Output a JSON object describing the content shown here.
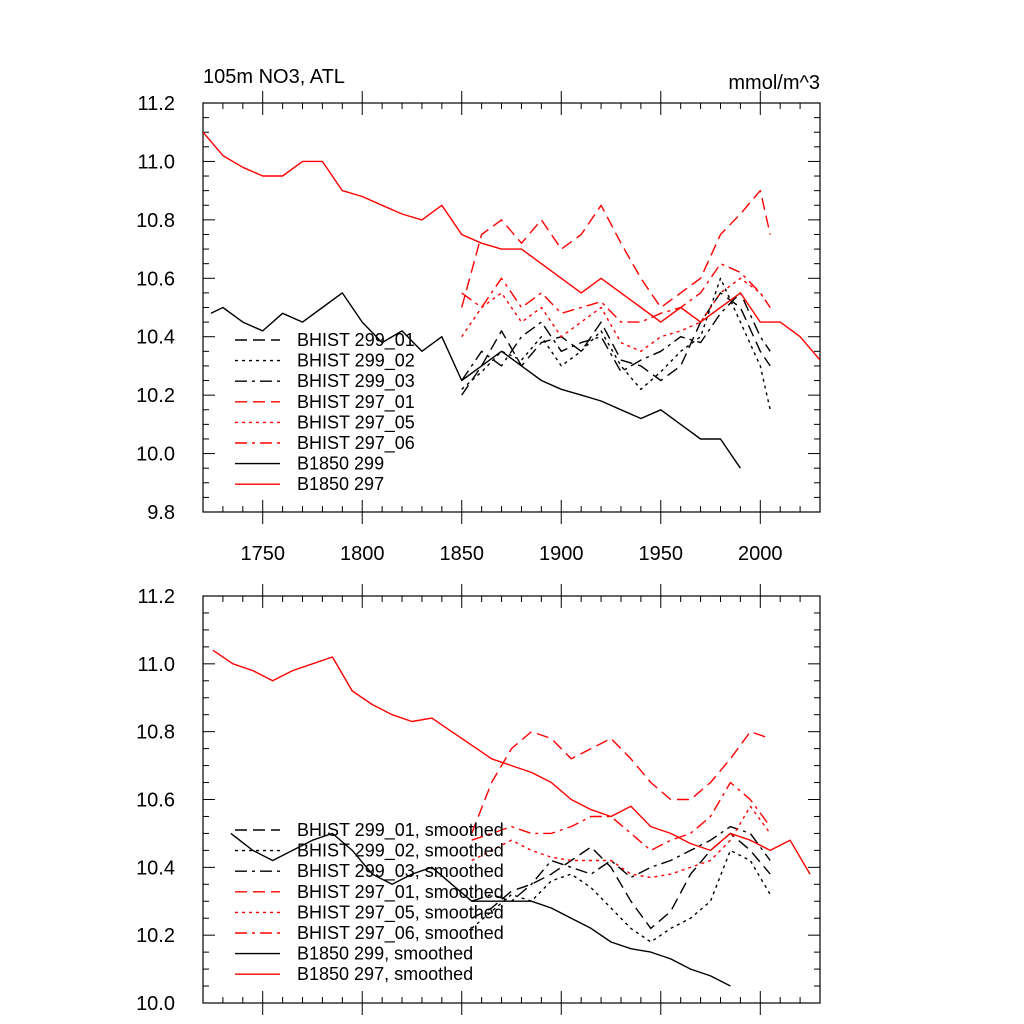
{
  "chart_data": [
    {
      "type": "line",
      "title": "105m NO3, ATL",
      "units": "mmol/m^3",
      "xlim": [
        1720,
        2030
      ],
      "ylim": [
        9.8,
        11.2
      ],
      "xticks": [
        1750,
        1800,
        1850,
        1900,
        1950,
        2000
      ],
      "xtick_labels": [
        "1750",
        "1800",
        "1850",
        "1900",
        "1950",
        "2000"
      ],
      "yticks": [
        9.8,
        10.0,
        10.2,
        10.4,
        10.6,
        10.8,
        11.0,
        11.2
      ],
      "ytick_labels": [
        "9.8",
        "10.0",
        "10.2",
        "10.4",
        "10.6",
        "10.8",
        "11.0",
        "11.2"
      ],
      "grid": false,
      "legend_position": "lower-left",
      "series": [
        {
          "name": "BHIST 299_01",
          "color": "#000000",
          "dash": "dash",
          "x": [
            1850,
            1860,
            1870,
            1880,
            1890,
            1900,
            1910,
            1920,
            1930,
            1940,
            1950,
            1960,
            1970,
            1980,
            1990,
            2000,
            2005
          ],
          "y": [
            10.2,
            10.3,
            10.42,
            10.3,
            10.38,
            10.4,
            10.35,
            10.45,
            10.32,
            10.3,
            10.25,
            10.3,
            10.45,
            10.55,
            10.5,
            10.35,
            10.3
          ]
        },
        {
          "name": "BHIST 299_02",
          "color": "#000000",
          "dash": "dot",
          "x": [
            1850,
            1860,
            1870,
            1880,
            1890,
            1900,
            1910,
            1920,
            1930,
            1940,
            1950,
            1960,
            1970,
            1980,
            1990,
            2000,
            2005
          ],
          "y": [
            10.22,
            10.28,
            10.35,
            10.32,
            10.4,
            10.3,
            10.35,
            10.42,
            10.3,
            10.22,
            10.28,
            10.35,
            10.4,
            10.6,
            10.45,
            10.3,
            10.15
          ]
        },
        {
          "name": "BHIST 299_03",
          "color": "#000000",
          "dash": "dashdot",
          "x": [
            1850,
            1860,
            1870,
            1880,
            1890,
            1900,
            1910,
            1920,
            1930,
            1940,
            1950,
            1960,
            1970,
            1980,
            1990,
            2000,
            2005
          ],
          "y": [
            10.25,
            10.35,
            10.3,
            10.4,
            10.45,
            10.35,
            10.38,
            10.4,
            10.28,
            10.32,
            10.35,
            10.4,
            10.38,
            10.48,
            10.55,
            10.4,
            10.35
          ]
        },
        {
          "name": "BHIST 297_01",
          "color": "#ff0000",
          "dash": "dash",
          "x": [
            1850,
            1860,
            1870,
            1880,
            1890,
            1900,
            1910,
            1920,
            1930,
            1940,
            1950,
            1960,
            1970,
            1980,
            1990,
            2000,
            2005
          ],
          "y": [
            10.5,
            10.75,
            10.8,
            10.72,
            10.8,
            10.7,
            10.75,
            10.85,
            10.72,
            10.6,
            10.5,
            10.55,
            10.6,
            10.75,
            10.82,
            10.9,
            10.75
          ]
        },
        {
          "name": "BHIST 297_05",
          "color": "#ff0000",
          "dash": "dot",
          "x": [
            1850,
            1860,
            1870,
            1880,
            1890,
            1900,
            1910,
            1920,
            1930,
            1940,
            1950,
            1960,
            1970,
            1980,
            1990,
            2000,
            2005
          ],
          "y": [
            10.4,
            10.5,
            10.55,
            10.45,
            10.5,
            10.4,
            10.45,
            10.5,
            10.38,
            10.35,
            10.4,
            10.42,
            10.45,
            10.55,
            10.6,
            10.55,
            10.5
          ]
        },
        {
          "name": "BHIST 297_06",
          "color": "#ff0000",
          "dash": "dashdot",
          "x": [
            1850,
            1860,
            1870,
            1880,
            1890,
            1900,
            1910,
            1920,
            1930,
            1940,
            1950,
            1960,
            1970,
            1980,
            1990,
            2000,
            2005
          ],
          "y": [
            10.55,
            10.5,
            10.6,
            10.5,
            10.55,
            10.48,
            10.5,
            10.52,
            10.45,
            10.45,
            10.48,
            10.5,
            10.55,
            10.65,
            10.62,
            10.55,
            10.5
          ]
        },
        {
          "name": "B1850 299",
          "color": "#000000",
          "dash": "solid",
          "x": [
            1724,
            1730,
            1740,
            1750,
            1760,
            1770,
            1780,
            1790,
            1800,
            1810,
            1820,
            1830,
            1840,
            1850,
            1860,
            1870,
            1880,
            1890,
            1900,
            1910,
            1920,
            1930,
            1940,
            1950,
            1960,
            1970,
            1980,
            1990
          ],
          "y": [
            10.48,
            10.5,
            10.45,
            10.42,
            10.48,
            10.45,
            10.5,
            10.55,
            10.45,
            10.38,
            10.42,
            10.35,
            10.4,
            10.25,
            10.3,
            10.35,
            10.3,
            10.25,
            10.22,
            10.2,
            10.18,
            10.15,
            10.12,
            10.15,
            10.1,
            10.05,
            10.05,
            9.95
          ]
        },
        {
          "name": "B1850 297",
          "color": "#ff0000",
          "dash": "solid",
          "x": [
            1720,
            1730,
            1740,
            1750,
            1760,
            1770,
            1780,
            1790,
            1800,
            1810,
            1820,
            1830,
            1840,
            1850,
            1860,
            1870,
            1880,
            1890,
            1900,
            1910,
            1920,
            1930,
            1940,
            1950,
            1960,
            1970,
            1980,
            1990,
            2000,
            2010,
            2020,
            2030
          ],
          "y": [
            11.1,
            11.02,
            10.98,
            10.95,
            10.95,
            11.0,
            11.0,
            10.9,
            10.88,
            10.85,
            10.82,
            10.8,
            10.85,
            10.75,
            10.72,
            10.7,
            10.7,
            10.65,
            10.6,
            10.55,
            10.6,
            10.55,
            10.5,
            10.45,
            10.5,
            10.45,
            10.5,
            10.55,
            10.45,
            10.45,
            10.4,
            10.32
          ]
        }
      ]
    },
    {
      "type": "line",
      "xlim": [
        1720,
        2030
      ],
      "ylim": [
        10.0,
        11.2
      ],
      "xticks": [
        1750,
        1800,
        1850,
        1900,
        1950,
        2000
      ],
      "yticks": [
        10.0,
        10.2,
        10.4,
        10.6,
        10.8,
        11.0,
        11.2
      ],
      "ytick_labels": [
        "10.0",
        "10.2",
        "10.4",
        "10.6",
        "10.8",
        "11.0",
        "11.2"
      ],
      "grid": false,
      "legend_position": "lower-left",
      "series": [
        {
          "name": "BHIST 299_01, smoothed",
          "color": "#000000",
          "dash": "dash",
          "x": [
            1855,
            1865,
            1875,
            1885,
            1895,
            1905,
            1915,
            1925,
            1935,
            1945,
            1955,
            1965,
            1975,
            1985,
            1995,
            2005
          ],
          "y": [
            10.25,
            10.28,
            10.33,
            10.35,
            10.38,
            10.42,
            10.46,
            10.4,
            10.3,
            10.22,
            10.27,
            10.38,
            10.45,
            10.5,
            10.45,
            10.38
          ]
        },
        {
          "name": "BHIST 299_02, smoothed",
          "color": "#000000",
          "dash": "dot",
          "x": [
            1855,
            1865,
            1875,
            1885,
            1895,
            1905,
            1915,
            1925,
            1935,
            1945,
            1955,
            1965,
            1975,
            1985,
            1995,
            2005
          ],
          "y": [
            10.22,
            10.27,
            10.32,
            10.3,
            10.36,
            10.38,
            10.34,
            10.28,
            10.22,
            10.18,
            10.22,
            10.25,
            10.3,
            10.45,
            10.42,
            10.32
          ]
        },
        {
          "name": "BHIST 299_03, smoothed",
          "color": "#000000",
          "dash": "dashdot",
          "x": [
            1855,
            1865,
            1875,
            1885,
            1895,
            1905,
            1915,
            1925,
            1935,
            1945,
            1955,
            1965,
            1975,
            1985,
            1995,
            2005
          ],
          "y": [
            10.3,
            10.32,
            10.3,
            10.35,
            10.42,
            10.4,
            10.38,
            10.42,
            10.37,
            10.4,
            10.42,
            10.45,
            10.48,
            10.52,
            10.5,
            10.42
          ]
        },
        {
          "name": "BHIST 297_01, smoothed",
          "color": "#ff0000",
          "dash": "dash",
          "x": [
            1855,
            1865,
            1875,
            1885,
            1895,
            1905,
            1915,
            1925,
            1935,
            1945,
            1955,
            1965,
            1975,
            1985,
            1995,
            2005
          ],
          "y": [
            10.5,
            10.65,
            10.75,
            10.8,
            10.78,
            10.72,
            10.75,
            10.78,
            10.72,
            10.65,
            10.6,
            10.6,
            10.65,
            10.72,
            10.8,
            10.78
          ]
        },
        {
          "name": "BHIST 297_05, smoothed",
          "color": "#ff0000",
          "dash": "dot",
          "x": [
            1855,
            1865,
            1875,
            1885,
            1895,
            1905,
            1915,
            1925,
            1935,
            1945,
            1955,
            1965,
            1975,
            1985,
            1995,
            2005
          ],
          "y": [
            10.42,
            10.45,
            10.48,
            10.45,
            10.43,
            10.42,
            10.42,
            10.42,
            10.38,
            10.37,
            10.38,
            10.4,
            10.42,
            10.48,
            10.58,
            10.5
          ]
        },
        {
          "name": "BHIST 297_06, smoothed",
          "color": "#ff0000",
          "dash": "dashdot",
          "x": [
            1855,
            1865,
            1875,
            1885,
            1895,
            1905,
            1915,
            1925,
            1935,
            1945,
            1955,
            1965,
            1975,
            1985,
            1995,
            2005
          ],
          "y": [
            10.48,
            10.5,
            10.52,
            10.5,
            10.5,
            10.52,
            10.55,
            10.55,
            10.5,
            10.45,
            10.48,
            10.5,
            10.55,
            10.65,
            10.6,
            10.52
          ]
        },
        {
          "name": "B1850 299, smoothed",
          "color": "#000000",
          "dash": "solid",
          "x": [
            1734,
            1745,
            1755,
            1765,
            1775,
            1785,
            1795,
            1805,
            1815,
            1825,
            1835,
            1845,
            1855,
            1865,
            1875,
            1885,
            1895,
            1905,
            1915,
            1925,
            1935,
            1945,
            1955,
            1965,
            1975,
            1985
          ],
          "y": [
            10.5,
            10.45,
            10.42,
            10.45,
            10.48,
            10.5,
            10.45,
            10.38,
            10.35,
            10.38,
            10.4,
            10.35,
            10.3,
            10.3,
            10.3,
            10.3,
            10.28,
            10.25,
            10.22,
            10.18,
            10.16,
            10.15,
            10.13,
            10.1,
            10.08,
            10.05
          ]
        },
        {
          "name": "B1850 297, smoothed",
          "color": "#ff0000",
          "dash": "solid",
          "x": [
            1725,
            1735,
            1745,
            1755,
            1765,
            1775,
            1785,
            1795,
            1805,
            1815,
            1825,
            1835,
            1845,
            1855,
            1865,
            1875,
            1885,
            1895,
            1905,
            1915,
            1925,
            1935,
            1945,
            1955,
            1965,
            1975,
            1985,
            1995,
            2005,
            2015,
            2025
          ],
          "y": [
            11.04,
            11.0,
            10.98,
            10.95,
            10.98,
            11.0,
            11.02,
            10.92,
            10.88,
            10.85,
            10.83,
            10.84,
            10.8,
            10.76,
            10.72,
            10.7,
            10.68,
            10.65,
            10.6,
            10.57,
            10.55,
            10.58,
            10.52,
            10.5,
            10.47,
            10.45,
            10.5,
            10.48,
            10.45,
            10.48,
            10.38
          ]
        }
      ]
    }
  ]
}
